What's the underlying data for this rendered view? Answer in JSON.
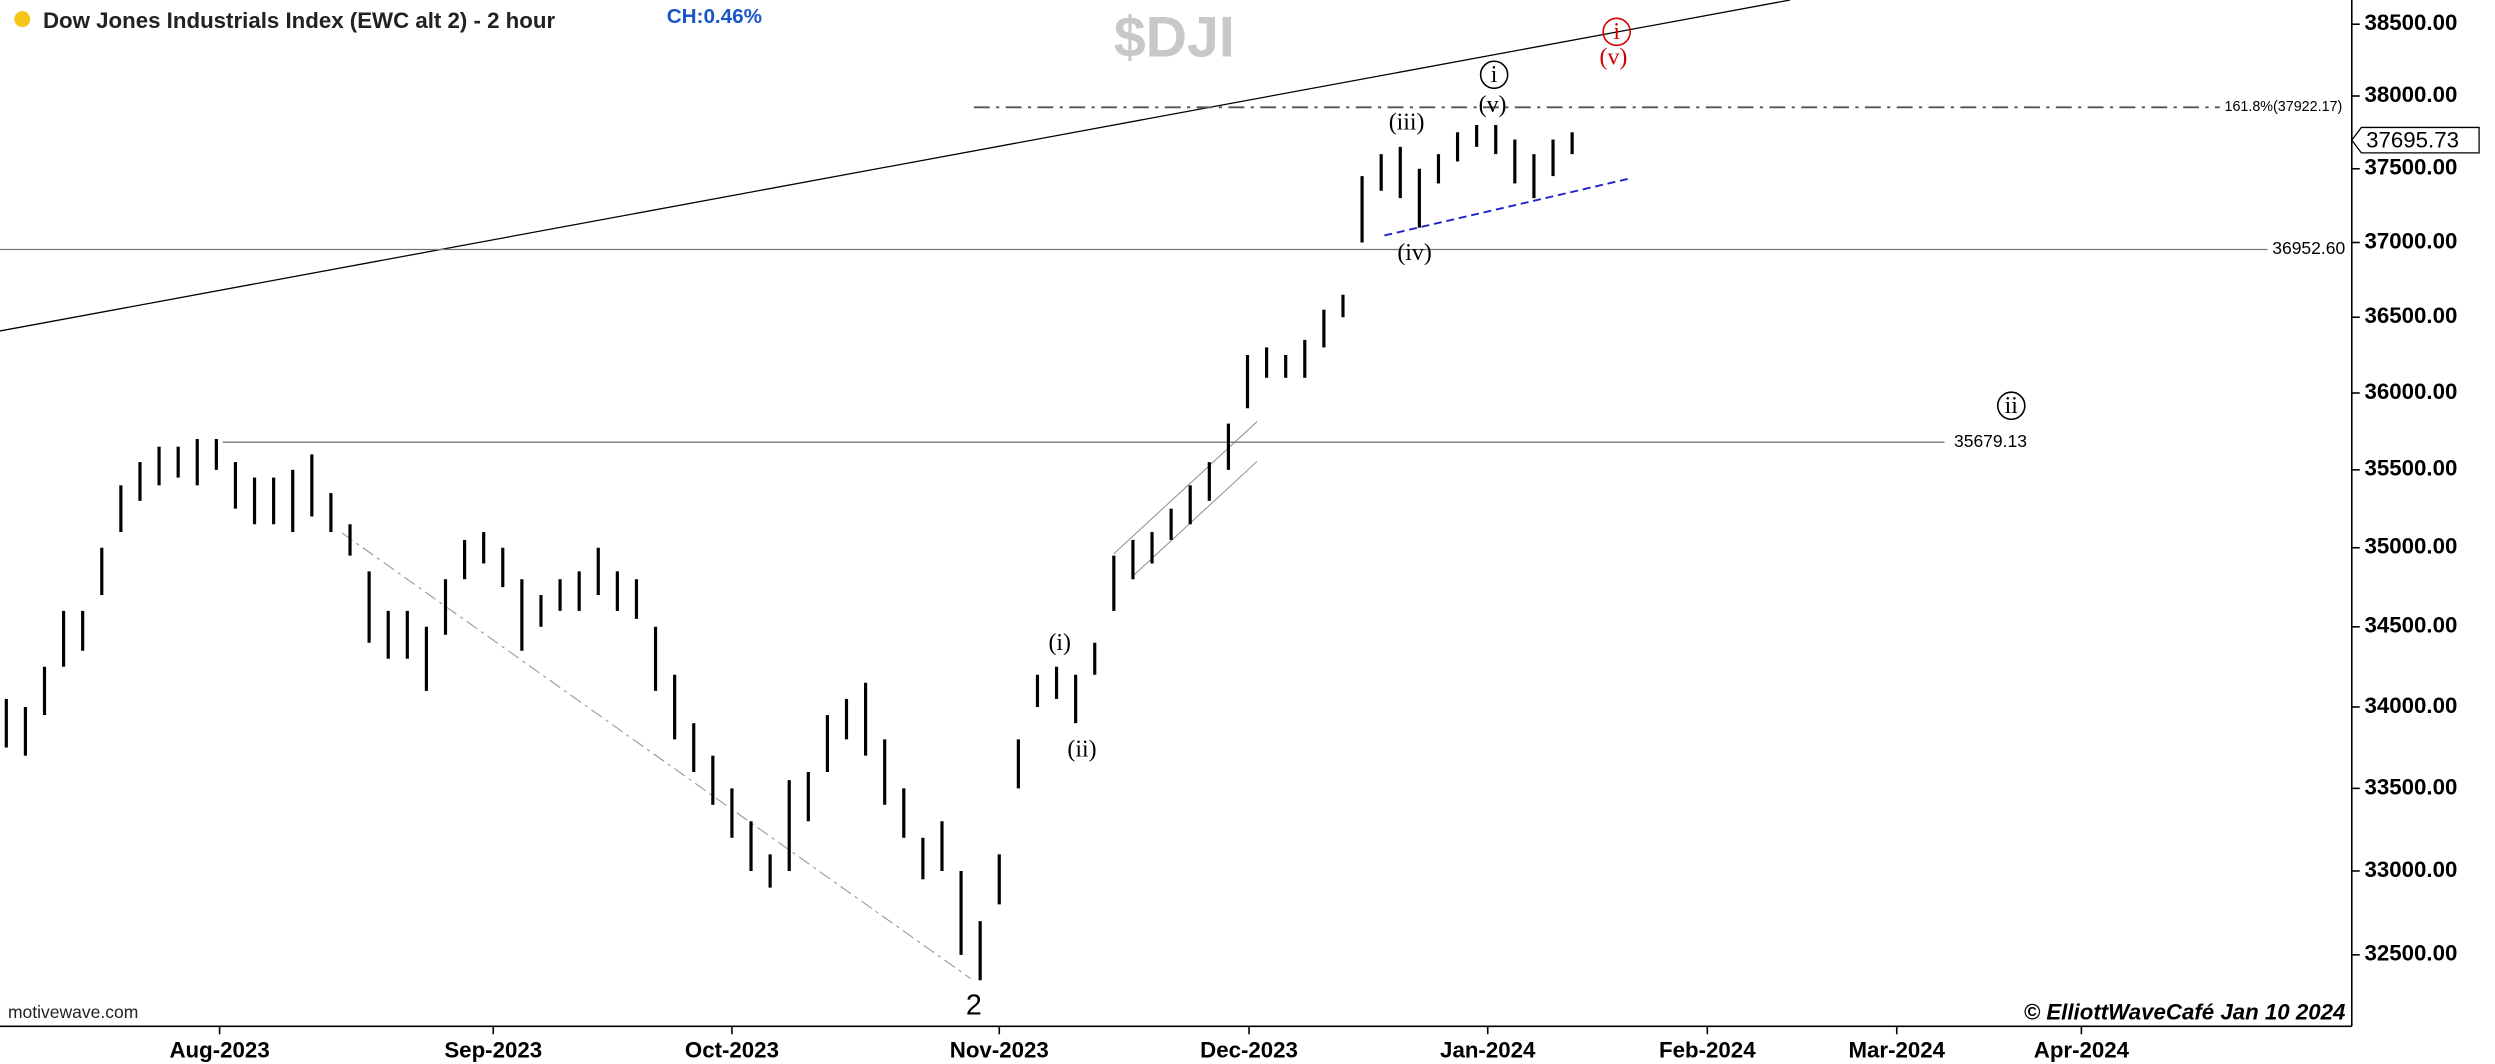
{
  "chart_data": {
    "type": "hl-bar",
    "title": "Dow Jones Industrials Index (EWC alt 2) - 2 hour",
    "change": "CH:0.46%",
    "symbol": "$DJI",
    "source": "motivewave.com",
    "credit": "© ElliottWaveCafé Jan 10 2024",
    "log_scale": true,
    "color": "#000000",
    "categories": [
      null,
      null,
      null,
      null,
      null,
      null,
      null,
      null,
      null,
      null,
      null,
      null,
      null,
      null,
      null,
      null,
      null,
      null,
      null,
      null,
      null,
      null,
      null,
      null,
      null,
      null,
      null,
      null,
      null,
      null,
      null,
      null,
      null,
      null,
      null,
      null,
      null,
      null,
      null,
      null,
      null,
      null,
      null,
      null,
      null,
      null,
      null,
      null,
      null,
      null,
      null,
      null,
      null,
      null,
      null,
      null,
      null,
      null,
      null,
      null,
      null,
      null,
      null,
      null,
      null,
      null,
      null,
      null,
      null,
      null,
      null,
      null,
      null,
      null,
      null,
      null,
      null,
      null,
      null,
      null,
      null,
      null,
      null
    ],
    "high": [
      34050,
      34000,
      34250,
      34600,
      34600,
      35000,
      35400,
      35550,
      35650,
      35650,
      35700,
      35700,
      35550,
      35450,
      35450,
      35500,
      35600,
      35350,
      35150,
      34850,
      34600,
      34600,
      34500,
      34800,
      35050,
      35100,
      35000,
      34800,
      34700,
      34800,
      34850,
      35000,
      34850,
      34800,
      34500,
      34200,
      33900,
      33700,
      33500,
      33300,
      33100,
      33550,
      33600,
      33950,
      34050,
      34150,
      33800,
      33500,
      33200,
      33300,
      33000,
      32700,
      33100,
      33800,
      34200,
      34250,
      34200,
      34400,
      34950,
      35050,
      35100,
      35250,
      35400,
      35550,
      35800,
      36250,
      36300,
      36250,
      36350,
      36550,
      36650,
      37450,
      37600,
      37650,
      37500,
      37600,
      37750,
      37800,
      37800,
      37700,
      37600,
      37700,
      37750
    ],
    "low": [
      33750,
      33700,
      33950,
      34250,
      34350,
      34700,
      35100,
      35300,
      35400,
      35450,
      35400,
      35500,
      35250,
      35150,
      35150,
      35100,
      35200,
      35100,
      34950,
      34400,
      34300,
      34300,
      34100,
      34450,
      34800,
      34900,
      34750,
      34350,
      34500,
      34600,
      34600,
      34700,
      34600,
      34550,
      34100,
      33800,
      33600,
      33400,
      33200,
      33000,
      32900,
      33000,
      33300,
      33600,
      33800,
      33700,
      33400,
      33200,
      32950,
      33000,
      32500,
      32350,
      32800,
      33500,
      34000,
      34050,
      33900,
      34200,
      34600,
      34800,
      34900,
      35050,
      35150,
      35300,
      35500,
      35900,
      36100,
      36100,
      36100,
      36300,
      36500,
      37000,
      37350,
      37300,
      37100,
      37400,
      37550,
      37650,
      37600,
      37400,
      37300,
      37450,
      37600
    ],
    "xlim": [
      -0.33,
      122.83
    ],
    "xticks": [
      {
        "value": 11.17,
        "label": "Aug-2023"
      },
      {
        "value": 25.5,
        "label": "Sep-2023"
      },
      {
        "value": 38,
        "label": "Oct-2023"
      },
      {
        "value": 52,
        "label": "Nov-2023"
      },
      {
        "value": 65.08,
        "label": "Dec-2023"
      },
      {
        "value": 77.58,
        "label": "Jan-2024"
      },
      {
        "value": 89.08,
        "label": "Feb-2024"
      },
      {
        "value": 99,
        "label": "Mar-2024"
      },
      {
        "value": 108.67,
        "label": "Apr-2024"
      }
    ],
    "ylim": [
      32080,
      38670
    ],
    "yticks": [
      {
        "value": 32500,
        "label": "32500.00"
      },
      {
        "value": 33000,
        "label": "33000.00"
      },
      {
        "value": 33500,
        "label": "33500.00"
      },
      {
        "value": 34000,
        "label": "34000.00"
      },
      {
        "value": 34500,
        "label": "34500.00"
      },
      {
        "value": 35000,
        "label": "35000.00"
      },
      {
        "value": 35500,
        "label": "35500.00"
      },
      {
        "value": 36000,
        "label": "36000.00"
      },
      {
        "value": 36500,
        "label": "36500.00"
      },
      {
        "value": 37000,
        "label": "37000.00"
      },
      {
        "value": 37500,
        "label": "37500.00"
      },
      {
        "value": 38000,
        "label": "38000.00"
      },
      {
        "value": 38500,
        "label": "38500.00"
      }
    ],
    "last_price": {
      "value": 37695.73,
      "label": "37695.73"
    },
    "levels": [
      {
        "value": 36952.6,
        "label": "36952.60"
      },
      {
        "value": 35679.13,
        "label": "35679.13"
      },
      {
        "value": 37922.17,
        "label": "161.8%(37922.17)"
      }
    ],
    "annotations": [
      {
        "text": "2"
      },
      {
        "text": "(i)"
      },
      {
        "text": "(ii)"
      },
      {
        "text": "(iii)"
      },
      {
        "text": "(iv)"
      },
      {
        "text": "(v)"
      },
      {
        "text": "i",
        "circled": true
      },
      {
        "text": "i",
        "circled": true,
        "color": "#d00000"
      },
      {
        "text": "(v)",
        "color": "#d00000"
      },
      {
        "text": "ii",
        "circled": true
      }
    ]
  }
}
